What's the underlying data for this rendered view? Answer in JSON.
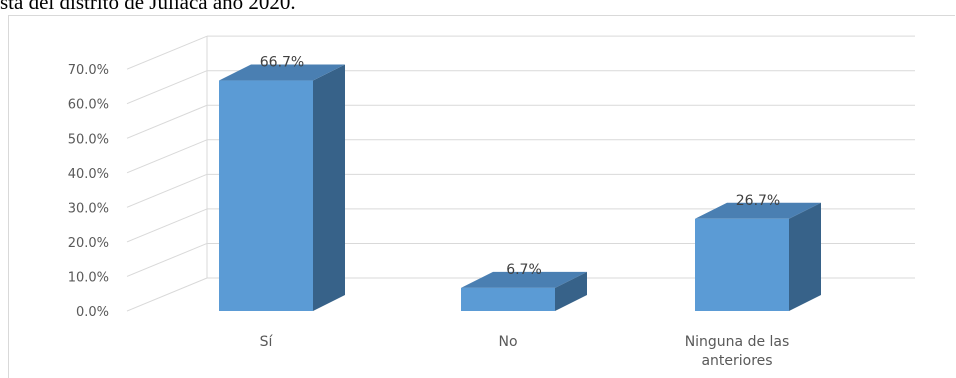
{
  "caption": "sta del distrito de Juliaca año 2020.",
  "colors": {
    "bar_front": "#5b9bd5",
    "bar_side": "#376289",
    "bar_top": "#4a7fb2",
    "gridline": "#d9d9d9",
    "text": "#595959"
  },
  "chart_data": {
    "type": "bar",
    "title": "",
    "xlabel": "",
    "ylabel": "",
    "categories": [
      "Sí",
      "No",
      "Ninguna de las anteriores"
    ],
    "category_lines": [
      [
        "Sí"
      ],
      [
        "No"
      ],
      [
        "Ninguna de las",
        "anteriores"
      ]
    ],
    "values": [
      66.7,
      6.7,
      26.7
    ],
    "data_labels": [
      "66.7%",
      "6.7%",
      "26.7%"
    ],
    "ylim": [
      0,
      70
    ],
    "yticks": [
      0,
      10,
      20,
      30,
      40,
      50,
      60,
      70
    ],
    "ytick_labels": [
      "0.0%",
      "10.0%",
      "20.0%",
      "30.0%",
      "40.0%",
      "50.0%",
      "60.0%",
      "70.0%"
    ],
    "grid": true,
    "legend": "none",
    "style": "3d-column"
  }
}
